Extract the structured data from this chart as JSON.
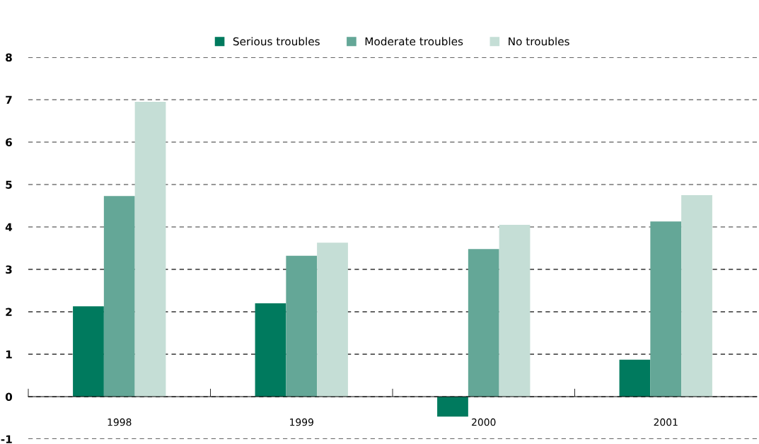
{
  "chart_data": {
    "type": "bar",
    "categories": [
      "1998",
      "1999",
      "2000",
      "2001"
    ],
    "series": [
      {
        "name": "Serious troubles",
        "color": "#007a5e",
        "values": [
          2.13,
          2.2,
          -0.47,
          0.87
        ]
      },
      {
        "name": "Moderate troubles",
        "color": "#64a797",
        "values": [
          4.73,
          3.32,
          3.48,
          4.13
        ]
      },
      {
        "name": "No troubles",
        "color": "#c5ded6",
        "values": [
          6.95,
          3.63,
          4.05,
          4.75
        ]
      }
    ],
    "ylim": [
      -1,
      8
    ],
    "yticks": [
      -1,
      0,
      1,
      2,
      3,
      4,
      5,
      6,
      7,
      8
    ],
    "grid": "y",
    "legend": "top"
  }
}
